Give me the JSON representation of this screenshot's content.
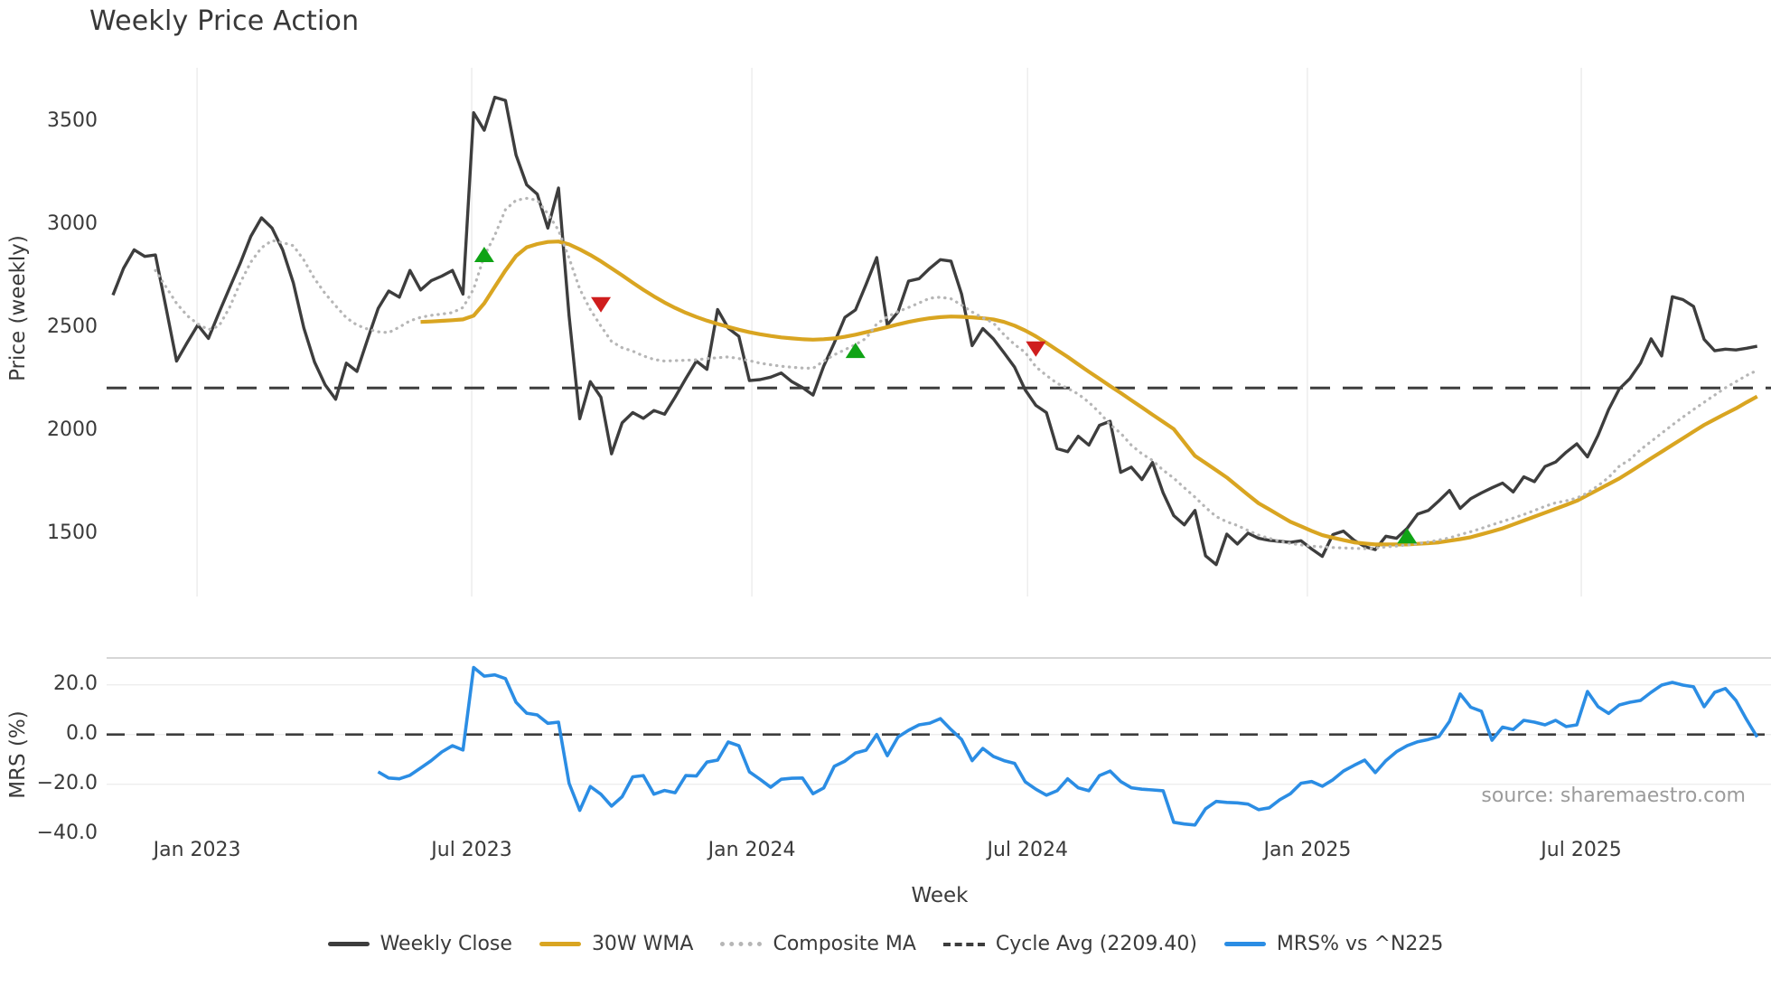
{
  "title": "Weekly Price Action",
  "xlabel": "Week",
  "source_text": "source: sharemaestro.com",
  "colors": {
    "weekly_close": "#3d3d3d",
    "wma30": "#d9a521",
    "composite": "#b6b6b6",
    "cycle_avg": "#3d3d3d",
    "mrs": "#2b8de4",
    "buy_marker": "#0fa315",
    "sell_marker": "#cf1d1d",
    "grid": "#ededed",
    "spine": "#c9c9c9",
    "text": "#3a3a3a",
    "muted": "#9b9b9b"
  },
  "legend": {
    "items": [
      {
        "label": "Weekly Close",
        "style": "solid",
        "color": "#3d3d3d"
      },
      {
        "label": "30W WMA",
        "style": "solid",
        "color": "#d9a521"
      },
      {
        "label": "Composite MA",
        "style": "dotted",
        "color": "#b6b6b6"
      },
      {
        "label": "Cycle Avg (2209.40)",
        "style": "dashed",
        "color": "#3d3d3d"
      },
      {
        "label": "MRS% vs ^N225",
        "style": "solid",
        "color": "#2b8de4"
      }
    ]
  },
  "chart_data": [
    {
      "type": "line",
      "panel": "price",
      "title": "Weekly Price Action",
      "ylabel": "Price (weekly)",
      "ylim": [
        1200,
        3760
      ],
      "grid": "vertical-only",
      "y_ticks": [
        1500,
        2000,
        2500,
        3000,
        3500
      ],
      "x_ticks": [
        {
          "label": "Jan 2023",
          "week": 7.93
        },
        {
          "label": "Jul 2023",
          "week": 33.82
        },
        {
          "label": "Jan 2024",
          "week": 60.23
        },
        {
          "label": "Jul 2024",
          "week": 86.22
        },
        {
          "label": "Jan 2025",
          "week": 112.6
        },
        {
          "label": "Jul 2025",
          "week": 138.42
        }
      ],
      "cycle_avg": 2209.4,
      "series": [
        {
          "name": "Weekly Close",
          "start_week": 0,
          "values": [
            2660,
            2790,
            2880,
            2848,
            2855,
            2600,
            2340,
            2430,
            2515,
            2450,
            2575,
            2695,
            2815,
            2945,
            3035,
            2985,
            2880,
            2720,
            2500,
            2335,
            2225,
            2155,
            2330,
            2290,
            2445,
            2595,
            2680,
            2650,
            2780,
            2685,
            2730,
            2752,
            2780,
            2665,
            3545,
            3460,
            3620,
            3605,
            3340,
            3195,
            3150,
            2985,
            3180,
            2560,
            2060,
            2240,
            2165,
            1890,
            2040,
            2090,
            2062,
            2100,
            2082,
            2165,
            2255,
            2340,
            2300,
            2590,
            2500,
            2460,
            2245,
            2250,
            2262,
            2282,
            2240,
            2212,
            2175,
            2315,
            2428,
            2552,
            2588,
            2712,
            2842,
            2515,
            2578,
            2728,
            2740,
            2790,
            2832,
            2825,
            2665,
            2415,
            2498,
            2448,
            2380,
            2310,
            2200,
            2125,
            2090,
            1915,
            1900,
            1975,
            1932,
            2028,
            2048,
            1800,
            1825,
            1765,
            1848,
            1700,
            1590,
            1545,
            1615,
            1395,
            1352,
            1500,
            1452,
            1505,
            1480,
            1470,
            1465,
            1460,
            1468,
            1428,
            1392,
            1498,
            1515,
            1470,
            1440,
            1425,
            1490,
            1480,
            1528,
            1598,
            1615,
            1662,
            1712,
            1625,
            1672,
            1700,
            1725,
            1748,
            1705,
            1778,
            1755,
            1828,
            1850,
            1898,
            1938,
            1875,
            1980,
            2105,
            2205,
            2255,
            2330,
            2448,
            2365,
            2652,
            2638,
            2605,
            2445,
            2390,
            2398,
            2394,
            2402,
            2412
          ]
        },
        {
          "name": "30W WMA",
          "start_week": 29,
          "values": [
            2530,
            2532,
            2535,
            2538,
            2542,
            2560,
            2620,
            2700,
            2780,
            2850,
            2892,
            2908,
            2918,
            2920,
            2906,
            2882,
            2855,
            2824,
            2790,
            2756,
            2720,
            2686,
            2654,
            2624,
            2598,
            2574,
            2554,
            2536,
            2520,
            2506,
            2492,
            2480,
            2470,
            2462,
            2455,
            2450,
            2446,
            2444,
            2446,
            2450,
            2458,
            2468,
            2480,
            2492,
            2505,
            2518,
            2530,
            2540,
            2548,
            2553,
            2556,
            2555,
            2552,
            2548,
            2542,
            2530,
            2512,
            2488,
            2460,
            2428,
            2394,
            2360,
            2324,
            2288,
            2254,
            2219,
            2185,
            2150,
            2115,
            2080,
            2045,
            2010,
            1945,
            1880,
            1845,
            1810,
            1775,
            1733,
            1691,
            1650,
            1620,
            1590,
            1560,
            1538,
            1516,
            1495,
            1483,
            1471,
            1460,
            1455,
            1450,
            1450,
            1450,
            1450,
            1453,
            1456,
            1460,
            1468,
            1476,
            1485,
            1499,
            1513,
            1528,
            1547,
            1566,
            1585,
            1604,
            1623,
            1642,
            1662,
            1689,
            1716,
            1743,
            1770,
            1802,
            1835,
            1868,
            1900,
            1933,
            1965,
            1998,
            2030,
            2057,
            2084,
            2110,
            2140,
            2168
          ]
        },
        {
          "name": "Composite MA",
          "start_week": 4,
          "values": [
            2780,
            2700,
            2620,
            2560,
            2520,
            2492,
            2510,
            2600,
            2720,
            2820,
            2890,
            2925,
            2915,
            2900,
            2830,
            2740,
            2668,
            2608,
            2550,
            2515,
            2495,
            2482,
            2478,
            2505,
            2535,
            2552,
            2562,
            2568,
            2575,
            2600,
            2690,
            2850,
            2950,
            3075,
            3120,
            3130,
            3120,
            3055,
            2975,
            2840,
            2690,
            2590,
            2510,
            2435,
            2405,
            2388,
            2365,
            2348,
            2340,
            2342,
            2344,
            2346,
            2352,
            2356,
            2360,
            2352,
            2342,
            2330,
            2322,
            2315,
            2310,
            2306,
            2305,
            2340,
            2370,
            2395,
            2420,
            2450,
            2520,
            2555,
            2580,
            2600,
            2622,
            2645,
            2650,
            2642,
            2612,
            2578,
            2550,
            2525,
            2468,
            2420,
            2382,
            2312,
            2270,
            2232,
            2208,
            2180,
            2140,
            2090,
            2032,
            1990,
            1932,
            1890,
            1858,
            1810,
            1772,
            1725,
            1680,
            1630,
            1585,
            1560,
            1542,
            1518,
            1495,
            1480,
            1465,
            1455,
            1448,
            1442,
            1438,
            1435,
            1433,
            1431,
            1430,
            1432,
            1438,
            1442,
            1448,
            1454,
            1462,
            1472,
            1482,
            1498,
            1512,
            1528,
            1545,
            1562,
            1578,
            1595,
            1615,
            1635,
            1652,
            1662,
            1675,
            1700,
            1735,
            1775,
            1830,
            1862,
            1910,
            1950,
            1990,
            2030,
            2068,
            2105,
            2140,
            2175,
            2210,
            2240,
            2270,
            2295
          ]
        }
      ],
      "markers": [
        {
          "type": "buy",
          "week": 35,
          "price": 2855
        },
        {
          "type": "sell",
          "week": 46,
          "price": 2615
        },
        {
          "type": "buy",
          "week": 70,
          "price": 2390
        },
        {
          "type": "sell",
          "week": 87,
          "price": 2400
        },
        {
          "type": "buy",
          "week": 122,
          "price": 1490
        }
      ]
    },
    {
      "type": "line",
      "panel": "mrs",
      "ylabel": "MRS (%)",
      "xlabel": "Week",
      "ylim": [
        -43,
        31
      ],
      "zero_line": 0.0,
      "y_ticks": [
        {
          "label": "20.0",
          "value": 20
        },
        {
          "label": "0.0",
          "value": 0
        },
        {
          "label": "−20.0",
          "value": -20
        },
        {
          "label": "−40.0",
          "value": -40
        }
      ],
      "series": [
        {
          "name": "MRS% vs ^N225",
          "start_week": 25,
          "values": [
            -15.0,
            -17.5,
            -17.8,
            -16.4,
            -13.5,
            -10.5,
            -7.0,
            -4.5,
            -6.2,
            27.0,
            23.5,
            24.0,
            22.5,
            13.0,
            8.6,
            7.9,
            4.5,
            5.0,
            -19.6,
            -30.5,
            -20.9,
            -24.0,
            -28.8,
            -25.0,
            -17.0,
            -16.5,
            -24.0,
            -22.5,
            -23.4,
            -16.5,
            -16.7,
            -11.1,
            -10.3,
            -3.0,
            -4.5,
            -15.0,
            -18.0,
            -21.2,
            -18.0,
            -17.6,
            -17.5,
            -23.8,
            -21.5,
            -12.8,
            -10.7,
            -7.4,
            -6.3,
            0.0,
            -8.5,
            -1.0,
            1.7,
            3.9,
            4.6,
            6.4,
            2.0,
            -2.0,
            -10.5,
            -5.6,
            -8.8,
            -10.5,
            -11.6,
            -19.0,
            -22.0,
            -24.4,
            -22.6,
            -17.8,
            -21.4,
            -22.6,
            -16.5,
            -14.7,
            -18.9,
            -21.4,
            -22.0,
            -22.3,
            -22.6,
            -35.3,
            -36.0,
            -36.4,
            -29.9,
            -26.9,
            -27.3,
            -27.5,
            -28.0,
            -30.2,
            -29.5,
            -26.2,
            -23.8,
            -19.6,
            -18.9,
            -20.8,
            -18.2,
            -14.7,
            -12.4,
            -10.3,
            -15.3,
            -10.5,
            -6.9,
            -4.5,
            -2.9,
            -2.0,
            -0.8,
            5.3,
            16.3,
            11.0,
            9.4,
            -2.3,
            3.0,
            2.0,
            5.7,
            5.0,
            3.9,
            5.7,
            3.2,
            3.9,
            17.3,
            11.2,
            8.5,
            11.9,
            13.0,
            13.7,
            17.0,
            19.9,
            21.0,
            19.9,
            19.2,
            11.2,
            17.0,
            18.5,
            13.7,
            6.0,
            -1.0
          ]
        }
      ]
    }
  ]
}
